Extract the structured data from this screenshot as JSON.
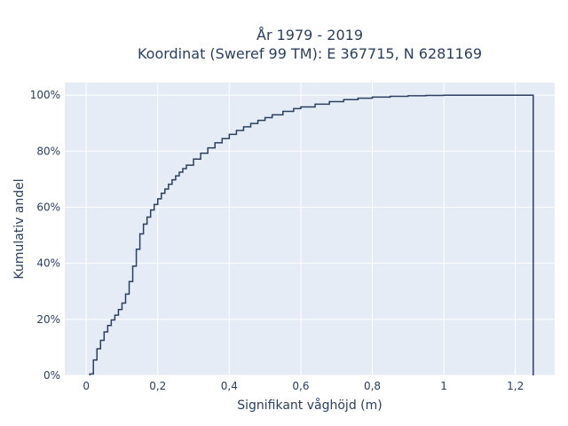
{
  "chart_data": {
    "type": "line",
    "line_shape": "step",
    "title_lines": [
      "År 1979 - 2019",
      "Koordinat (Sweref 99 TM): E 367715, N 6281169"
    ],
    "xlabel": "Signifikant våghöjd (m)",
    "ylabel": "Kumulativ andel",
    "xlim": [
      -0.06,
      1.31
    ],
    "ylim": [
      0,
      1.045
    ],
    "x_ticks": [
      0,
      0.2,
      0.4,
      0.6,
      0.8,
      1.0,
      1.2
    ],
    "x_tick_labels": [
      "0",
      "0,2",
      "0,4",
      "0,6",
      "0,8",
      "1",
      "1,2"
    ],
    "y_ticks": [
      0,
      0.2,
      0.4,
      0.6,
      0.8,
      1.0
    ],
    "y_tick_labels": [
      "0%",
      "20%",
      "40%",
      "60%",
      "80%",
      "100%"
    ],
    "grid": true,
    "legend": "none",
    "colors": {
      "line": "#2a3f5f",
      "plot_bg": "#e5ecf6",
      "grid": "#ffffff",
      "text": "#2a3f5f"
    },
    "series": [
      {
        "x": [
          0.01,
          0.02,
          0.03,
          0.04,
          0.05,
          0.06,
          0.07,
          0.08,
          0.09,
          0.1,
          0.11,
          0.12,
          0.13,
          0.14,
          0.15,
          0.16,
          0.17,
          0.18,
          0.19,
          0.2,
          0.21,
          0.22,
          0.23,
          0.24,
          0.25,
          0.26,
          0.27,
          0.28,
          0.3,
          0.32,
          0.34,
          0.36,
          0.38,
          0.4,
          0.42,
          0.44,
          0.46,
          0.48,
          0.5,
          0.52,
          0.55,
          0.58,
          0.6,
          0.64,
          0.68,
          0.72,
          0.76,
          0.8,
          0.85,
          0.9,
          0.95,
          1.0,
          1.05,
          1.1,
          1.15,
          1.2,
          1.25
        ],
        "y": [
          0.005,
          0.055,
          0.095,
          0.125,
          0.155,
          0.178,
          0.198,
          0.215,
          0.235,
          0.258,
          0.29,
          0.335,
          0.39,
          0.45,
          0.505,
          0.54,
          0.565,
          0.59,
          0.61,
          0.63,
          0.65,
          0.665,
          0.682,
          0.698,
          0.712,
          0.725,
          0.738,
          0.75,
          0.772,
          0.793,
          0.812,
          0.83,
          0.845,
          0.86,
          0.874,
          0.887,
          0.899,
          0.91,
          0.92,
          0.93,
          0.942,
          0.952,
          0.958,
          0.968,
          0.977,
          0.984,
          0.989,
          0.993,
          0.996,
          0.998,
          0.999,
          1.0,
          1.0,
          1.0,
          1.0,
          1.0,
          1.0
        ]
      }
    ]
  }
}
